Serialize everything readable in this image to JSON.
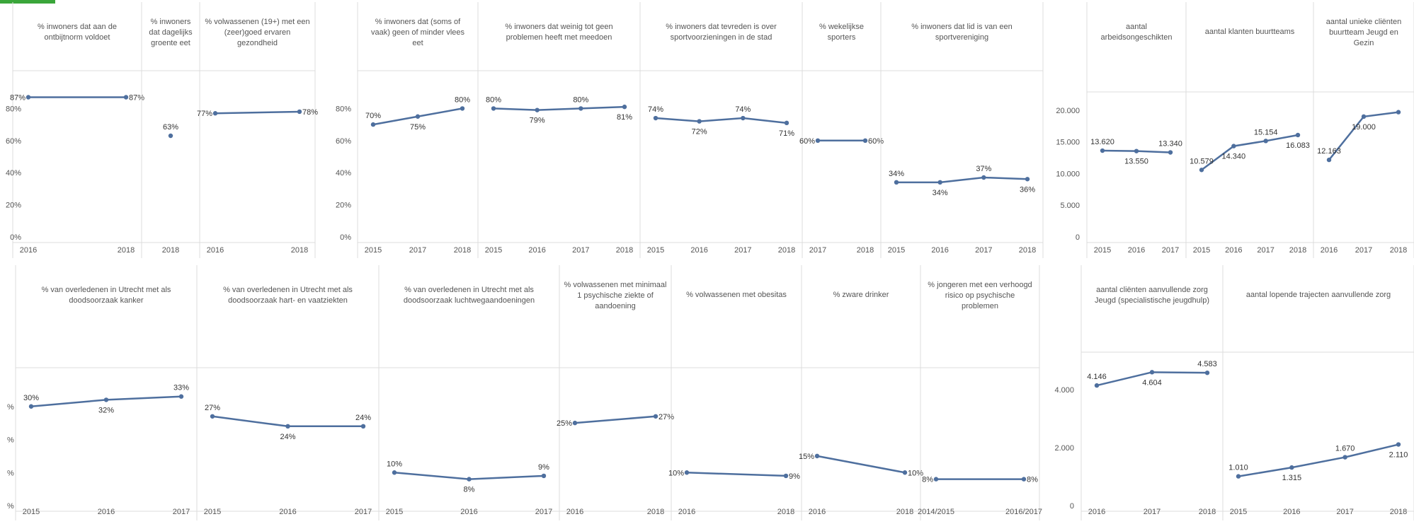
{
  "colors": {
    "line": "#4e6f9e",
    "grid": "#dcdcdc",
    "text": "#555555",
    "accent": "#3aa63a"
  },
  "chart_data": [
    {
      "type": "line",
      "group": "top-left",
      "title": "% inwoners dat aan de ontbijtnorm voldoet",
      "categories": [
        "2016",
        "2018"
      ],
      "values": [
        87,
        87
      ],
      "labels": [
        "87%",
        "87%"
      ],
      "ylim": [
        0,
        100
      ],
      "yticks": [
        "80%",
        "60%",
        "40%",
        "20%",
        "0%"
      ]
    },
    {
      "type": "line",
      "group": "top-left",
      "title": "% inwoners dat dagelijks groente eet",
      "categories": [
        "2018"
      ],
      "values": [
        63
      ],
      "labels": [
        "63%"
      ],
      "ylim": [
        0,
        100
      ]
    },
    {
      "type": "line",
      "group": "top-left",
      "title": "% volwassenen (19+) met een (zeer)goed ervaren gezondheid",
      "categories": [
        "2016",
        "2018"
      ],
      "values": [
        77,
        78
      ],
      "labels": [
        "77%",
        "78%"
      ],
      "ylim": [
        0,
        100
      ]
    },
    {
      "type": "line",
      "group": "top-mid",
      "title": "% inwoners dat (soms of vaak) geen of minder vlees eet",
      "categories": [
        "2015",
        "2017",
        "2018"
      ],
      "values": [
        70,
        75,
        80
      ],
      "labels": [
        "70%",
        "75%",
        "80%"
      ],
      "ylim": [
        0,
        100
      ],
      "yticks": [
        "80%",
        "60%",
        "40%",
        "20%",
        "0%"
      ]
    },
    {
      "type": "line",
      "group": "top-mid",
      "title": "% inwoners dat weinig tot geen problemen heeft met meedoen",
      "categories": [
        "2015",
        "2016",
        "2017",
        "2018"
      ],
      "values": [
        80,
        79,
        80,
        81
      ],
      "labels": [
        "80%",
        "79%",
        "80%",
        "81%"
      ],
      "ylim": [
        0,
        100
      ]
    },
    {
      "type": "line",
      "group": "top-mid",
      "title": "% inwoners dat tevreden is over sportvoorzieningen in de stad",
      "categories": [
        "2015",
        "2016",
        "2017",
        "2018"
      ],
      "values": [
        74,
        72,
        74,
        71
      ],
      "labels": [
        "74%",
        "72%",
        "74%",
        "71%"
      ],
      "ylim": [
        0,
        100
      ]
    },
    {
      "type": "line",
      "group": "top-mid",
      "title": "% wekelijkse sporters",
      "categories": [
        "2017",
        "2018"
      ],
      "values": [
        60,
        60
      ],
      "labels": [
        "60%",
        "60%"
      ],
      "ylim": [
        0,
        100
      ]
    },
    {
      "type": "line",
      "group": "top-mid",
      "title": "% inwoners dat lid is van een sportvereniging",
      "categories": [
        "2015",
        "2016",
        "2017",
        "2018"
      ],
      "values": [
        34,
        34,
        37,
        36
      ],
      "labels": [
        "34%",
        "34%",
        "37%",
        "36%"
      ],
      "ylim": [
        0,
        100
      ]
    },
    {
      "type": "line",
      "group": "top-right",
      "title": "aantal arbeidsongeschikten",
      "categories": [
        "2015",
        "2016",
        "2017"
      ],
      "values": [
        13620,
        13550,
        13340
      ],
      "labels": [
        "13.620",
        "13.550",
        "13.340"
      ],
      "ylim": [
        0,
        22000
      ],
      "yticks": [
        "20.000",
        "15.000",
        "10.000",
        "5.000",
        "0"
      ]
    },
    {
      "type": "line",
      "group": "top-right",
      "title": "aantal klanten buurtteams",
      "categories": [
        "2015",
        "2016",
        "2017",
        "2018"
      ],
      "values": [
        10579,
        14340,
        15154,
        16083
      ],
      "labels": [
        "10.579",
        "14.340",
        "15.154",
        "16.083"
      ],
      "ylim": [
        0,
        22000
      ]
    },
    {
      "type": "line",
      "group": "top-right",
      "title": "aantal unieke cliënten buurtteam Jeugd en Gezin",
      "categories": [
        "2016",
        "2017",
        "2018"
      ],
      "values": [
        12163,
        19000,
        19700
      ],
      "labels": [
        "12.163",
        "19.000",
        ""
      ],
      "ylim": [
        0,
        22000
      ]
    },
    {
      "type": "line",
      "group": "bottom-left",
      "title": "% van overledenen in Utrecht met als doodsoorzaak kanker",
      "categories": [
        "2015",
        "2016",
        "2017"
      ],
      "values": [
        30,
        32,
        33
      ],
      "labels": [
        "30%",
        "32%",
        "33%"
      ],
      "ylim": [
        0,
        40
      ],
      "yticks": [
        "%",
        "%",
        "%",
        "%"
      ]
    },
    {
      "type": "line",
      "group": "bottom-left",
      "title": "% van overledenen in Utrecht met als doodsoorzaak hart- en vaatziekten",
      "categories": [
        "2015",
        "2016",
        "2017"
      ],
      "values": [
        27,
        24,
        24
      ],
      "labels": [
        "27%",
        "24%",
        "24%"
      ],
      "ylim": [
        0,
        40
      ]
    },
    {
      "type": "line",
      "group": "bottom-left",
      "title": "% van overledenen in Utrecht met als doodsoorzaak luchtwegaandoeningen",
      "categories": [
        "2015",
        "2016",
        "2017"
      ],
      "values": [
        10,
        8,
        9
      ],
      "labels": [
        "10%",
        "8%",
        "9%"
      ],
      "ylim": [
        0,
        40
      ]
    },
    {
      "type": "line",
      "group": "bottom-left",
      "title": "% volwassenen met minimaal 1 psychische ziekte of aandoening",
      "categories": [
        "2016",
        "2018"
      ],
      "values": [
        25,
        27
      ],
      "labels": [
        "25%",
        "27%"
      ],
      "ylim": [
        0,
        40
      ]
    },
    {
      "type": "line",
      "group": "bottom-left",
      "title": "% volwassenen met obesitas",
      "categories": [
        "2016",
        "2018"
      ],
      "values": [
        10,
        9
      ],
      "labels": [
        "10%",
        "9%"
      ],
      "ylim": [
        0,
        40
      ]
    },
    {
      "type": "line",
      "group": "bottom-left",
      "title": "% zware drinker",
      "categories": [
        "2016",
        "2018"
      ],
      "values": [
        15,
        10
      ],
      "labels": [
        "15%",
        "10%"
      ],
      "ylim": [
        0,
        40
      ]
    },
    {
      "type": "line",
      "group": "bottom-left",
      "title": "% jongeren met een verhoogd risico op psychische problemen",
      "categories": [
        "2014/2015",
        "2016/2017"
      ],
      "values": [
        8,
        8
      ],
      "labels": [
        "8%",
        "8%"
      ],
      "ylim": [
        0,
        40
      ]
    },
    {
      "type": "line",
      "group": "bottom-right",
      "title": "aantal cliënten aanvullende zorg Jeugd (specialistische jeugdhulp)",
      "categories": [
        "2016",
        "2017",
        "2018"
      ],
      "values": [
        4146,
        4604,
        4583
      ],
      "labels": [
        "4.146",
        "4.604",
        "4.583"
      ],
      "ylim": [
        0,
        5100
      ],
      "yticks": [
        "4.000",
        "2.000",
        "0"
      ]
    },
    {
      "type": "line",
      "group": "bottom-right",
      "title": "aantal lopende trajecten aanvullende zorg",
      "categories": [
        "2015",
        "2016",
        "2017",
        "2018"
      ],
      "values": [
        1010,
        1315,
        1670,
        2110
      ],
      "labels": [
        "1.010",
        "1.315",
        "1.670",
        "2.110"
      ],
      "ylim": [
        0,
        5100
      ]
    }
  ]
}
